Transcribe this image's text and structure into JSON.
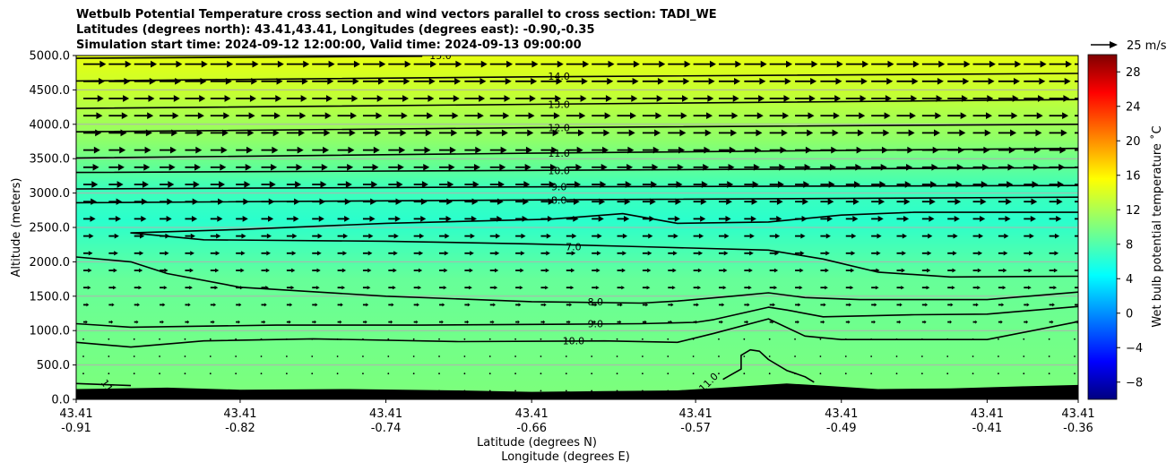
{
  "chart_data": {
    "type": "heatmap",
    "title": [
      "Wetbulb Potential Temperature cross section and wind vectors parallel to cross section: TADI_WE",
      "Latitudes (degrees north): 43.41,43.41, Longitudes (degrees east): -0.90,-0.35",
      "Simulation start time: 2024-09-12 12:00:00, Valid time: 2024-09-13 09:00:00"
    ],
    "xlabel": "Latitude (degrees N)",
    "xlabel2": "Longitude (degrees E)",
    "ylabel": "Altitude (meters)",
    "ylim": [
      0,
      5000
    ],
    "y_ticks": [
      "0.0",
      "500.0",
      "1000.0",
      "1500.0",
      "2000.0",
      "2500.0",
      "3000.0",
      "3500.0",
      "4000.0",
      "4500.0",
      "5000.0"
    ],
    "x_range": [
      -0.91,
      -0.36
    ],
    "x_ticks": [
      {
        "lon": -0.91,
        "lat_label": "43.41",
        "lon_label": "-0.91"
      },
      {
        "lon": -0.82,
        "lat_label": "43.41",
        "lon_label": "-0.82"
      },
      {
        "lon": -0.74,
        "lat_label": "43.41",
        "lon_label": "-0.74"
      },
      {
        "lon": -0.66,
        "lat_label": "43.41",
        "lon_label": "-0.66"
      },
      {
        "lon": -0.57,
        "lat_label": "43.41",
        "lon_label": "-0.57"
      },
      {
        "lon": -0.49,
        "lat_label": "43.41",
        "lon_label": "-0.49"
      },
      {
        "lon": -0.41,
        "lat_label": "43.41",
        "lon_label": "-0.41"
      },
      {
        "lon": -0.36,
        "lat_label": "43.41",
        "lon_label": "-0.36"
      }
    ],
    "grid": "horizontal",
    "colorbar": {
      "label": "Wet bulb potential temperature ˚C",
      "range": [
        -10,
        30
      ],
      "ticks": [
        "−8",
        "−4",
        "0",
        "4",
        "8",
        "12",
        "16",
        "20",
        "24",
        "28"
      ],
      "colormap": "jet"
    },
    "quiver_key": {
      "label": "25 m/s",
      "speed": 25
    },
    "contours": [
      {
        "label": "14.0",
        "points": [
          [
            -0.91,
            4630
          ],
          [
            -0.66,
            4690
          ],
          [
            -0.36,
            4740
          ]
        ]
      },
      {
        "label": "13.0",
        "points": [
          [
            -0.91,
            4230
          ],
          [
            -0.66,
            4290
          ],
          [
            -0.36,
            4360
          ]
        ]
      },
      {
        "label": "12.0",
        "points": [
          [
            -0.91,
            3890
          ],
          [
            -0.66,
            3950
          ],
          [
            -0.36,
            4000
          ]
        ]
      },
      {
        "label": "11.0",
        "points": [
          [
            -0.91,
            3510
          ],
          [
            -0.66,
            3580
          ],
          [
            -0.36,
            3650
          ]
        ]
      },
      {
        "label": "10.0",
        "points": [
          [
            -0.91,
            3300
          ],
          [
            -0.66,
            3330
          ],
          [
            -0.36,
            3370
          ]
        ]
      },
      {
        "label": "9.0",
        "points": [
          [
            -0.91,
            3060
          ],
          [
            -0.66,
            3090
          ],
          [
            -0.36,
            3110
          ]
        ]
      },
      {
        "label": "8.0",
        "points": [
          [
            -0.91,
            2860
          ],
          [
            -0.66,
            2900
          ],
          [
            -0.36,
            2940
          ]
        ]
      },
      {
        "label": "7.0",
        "points": [
          [
            -0.36,
            2720
          ],
          [
            -0.45,
            2720
          ],
          [
            -0.49,
            2680
          ],
          [
            -0.53,
            2580
          ],
          [
            -0.58,
            2560
          ],
          [
            -0.61,
            2700
          ],
          [
            -0.65,
            2620
          ],
          [
            -0.68,
            2600
          ],
          [
            -0.74,
            2560
          ],
          [
            -0.82,
            2470
          ],
          [
            -0.88,
            2420
          ],
          [
            -0.84,
            2320
          ],
          [
            -0.74,
            2300
          ],
          [
            -0.66,
            2260
          ],
          [
            -0.6,
            2220
          ],
          [
            -0.53,
            2170
          ],
          [
            -0.5,
            2040
          ],
          [
            -0.47,
            1850
          ],
          [
            -0.43,
            1780
          ],
          [
            -0.36,
            1790
          ]
        ]
      },
      {
        "label": "8.0",
        "points": [
          [
            -0.91,
            2070
          ],
          [
            -0.88,
            2000
          ],
          [
            -0.86,
            1830
          ],
          [
            -0.82,
            1630
          ],
          [
            -0.74,
            1500
          ],
          [
            -0.66,
            1420
          ],
          [
            -0.6,
            1400
          ],
          [
            -0.58,
            1430
          ],
          [
            -0.55,
            1500
          ],
          [
            -0.53,
            1550
          ],
          [
            -0.51,
            1480
          ],
          [
            -0.48,
            1450
          ],
          [
            -0.41,
            1450
          ],
          [
            -0.36,
            1560
          ]
        ]
      },
      {
        "label": "9.0",
        "points": [
          [
            -0.91,
            1100
          ],
          [
            -0.88,
            1050
          ],
          [
            -0.8,
            1080
          ],
          [
            -0.72,
            1080
          ],
          [
            -0.66,
            1090
          ],
          [
            -0.6,
            1100
          ],
          [
            -0.57,
            1120
          ],
          [
            -0.56,
            1160
          ],
          [
            -0.53,
            1340
          ],
          [
            -0.52,
            1300
          ],
          [
            -0.5,
            1200
          ],
          [
            -0.45,
            1230
          ],
          [
            -0.41,
            1240
          ],
          [
            -0.36,
            1350
          ]
        ]
      },
      {
        "label": "10.0",
        "points": [
          [
            -0.91,
            830
          ],
          [
            -0.88,
            760
          ],
          [
            -0.84,
            850
          ],
          [
            -0.78,
            880
          ],
          [
            -0.7,
            840
          ],
          [
            -0.62,
            850
          ],
          [
            -0.58,
            830
          ],
          [
            -0.56,
            960
          ],
          [
            -0.53,
            1170
          ],
          [
            -0.51,
            920
          ],
          [
            -0.49,
            870
          ],
          [
            -0.41,
            870
          ],
          [
            -0.36,
            1130
          ]
        ]
      },
      {
        "label": "11.0",
        "points": [
          [
            -0.555,
            290
          ],
          [
            -0.545,
            440
          ],
          [
            -0.545,
            640
          ],
          [
            -0.54,
            720
          ],
          [
            -0.535,
            700
          ],
          [
            -0.53,
            580
          ],
          [
            -0.52,
            420
          ],
          [
            -0.51,
            330
          ],
          [
            -0.505,
            250
          ]
        ]
      },
      {
        "label": "11",
        "points": [
          [
            -0.91,
            230
          ],
          [
            -0.88,
            200
          ]
        ]
      },
      {
        "label": "15.0",
        "points": [
          [
            -0.91,
            4960
          ],
          [
            -0.72,
            4990
          ]
        ]
      }
    ],
    "terrain": [
      [
        -0.91,
        150
      ],
      [
        -0.86,
        170
      ],
      [
        -0.82,
        140
      ],
      [
        -0.76,
        150
      ],
      [
        -0.7,
        130
      ],
      [
        -0.66,
        110
      ],
      [
        -0.62,
        120
      ],
      [
        -0.58,
        130
      ],
      [
        -0.55,
        180
      ],
      [
        -0.52,
        230
      ],
      [
        -0.5,
        200
      ],
      [
        -0.47,
        150
      ],
      [
        -0.43,
        160
      ],
      [
        -0.39,
        190
      ],
      [
        -0.36,
        210
      ]
    ]
  }
}
